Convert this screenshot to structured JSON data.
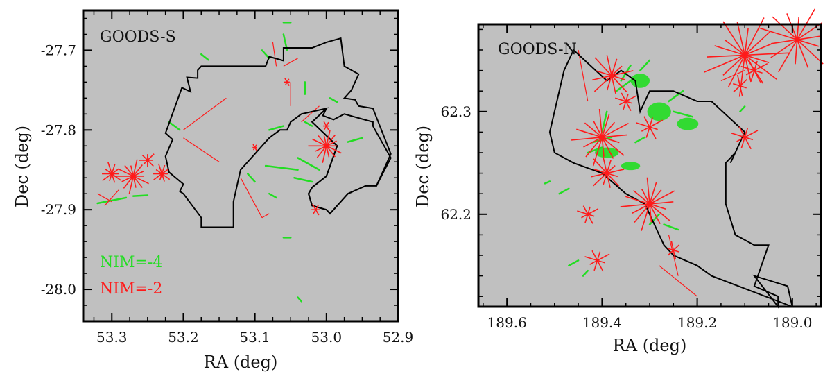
{
  "chart_data": [
    {
      "type": "scatter",
      "title": "GOODS-S",
      "xlabel": "RA (deg)",
      "ylabel": "Dec (deg)",
      "xlim": [
        53.34,
        52.9
      ],
      "ylim": [
        -28.04,
        -27.65
      ],
      "xticks": [
        53.3,
        53.2,
        53.1,
        53.0,
        52.9
      ],
      "xtick_labels": [
        "53.3",
        "53.2",
        "53.1",
        "53.0",
        "52.9"
      ],
      "yticks": [
        -27.7,
        -27.8,
        -27.9,
        -28.0
      ],
      "ytick_labels": [
        "-27.7",
        "-27.8",
        "-27.9",
        "-28.0"
      ],
      "background": "#c0c0c0",
      "legend": [
        {
          "label": "NIM=-4",
          "color": "#22dd22"
        },
        {
          "label": "NIM=-2",
          "color": "#ff1a1a"
        }
      ],
      "footprint_ra": [
        53.202,
        53.19,
        53.195,
        53.18,
        53.18,
        53.175,
        53.11,
        53.1,
        53.085,
        53.08,
        53.06,
        53.06,
        53.04,
        53.02,
        53.0,
        52.98,
        52.975,
        52.955,
        52.965,
        52.975,
        52.975,
        52.96,
        52.955,
        52.935,
        52.91,
        52.93,
        52.945,
        52.97,
        52.995,
        53.0,
        53.02,
        53.025,
        53.02,
        53.0,
        52.985,
        53.02,
        53.0,
        53.035,
        53.05,
        53.055,
        53.065,
        53.08,
        53.1,
        53.12,
        53.125,
        53.13,
        53.13,
        53.175,
        53.175,
        53.2,
        53.205,
        53.2,
        53.22,
        53.225,
        53.215,
        53.225
      ],
      "footprint_dec": [
        -27.747,
        -27.752,
        -27.734,
        -27.735,
        -27.725,
        -27.72,
        -27.72,
        -27.72,
        -27.72,
        -27.708,
        -27.713,
        -27.697,
        -27.697,
        -27.697,
        -27.69,
        -27.685,
        -27.72,
        -27.73,
        -27.75,
        -27.76,
        -27.76,
        -27.762,
        -27.77,
        -27.773,
        -27.83,
        -27.87,
        -27.87,
        -27.88,
        -27.905,
        -27.9,
        -27.895,
        -27.88,
        -27.872,
        -27.858,
        -27.82,
        -27.79,
        -27.773,
        -27.78,
        -27.79,
        -27.8,
        -27.8,
        -27.81,
        -27.83,
        -27.85,
        -27.87,
        -27.89,
        -27.922,
        -27.922,
        -27.91,
        -27.88,
        -27.877,
        -27.868,
        -27.853,
        -27.833,
        -27.812,
        -27.804
      ],
      "footprint_ra_2": [
        53.005,
        52.99,
        52.975,
        52.955,
        52.935,
        52.935,
        52.91,
        52.93,
        52.945,
        52.97,
        52.995,
        53.0,
        53.02,
        53.025,
        53.02,
        53.0,
        52.985,
        53.02,
        53.0,
        53.005
      ],
      "footprint_dec_2": [
        -27.782,
        -27.787,
        -27.78,
        -27.785,
        -27.79,
        -27.795,
        -27.835,
        -27.87,
        -27.87,
        -27.88,
        -27.905,
        -27.9,
        -27.895,
        -27.88,
        -27.872,
        -27.858,
        -27.82,
        -27.79,
        -27.773,
        -27.782
      ],
      "red_stars": [
        {
          "ra": 53.3,
          "dec": -27.855,
          "r": 0.016,
          "n": 10
        },
        {
          "ra": 53.27,
          "dec": -27.858,
          "r": 0.025,
          "n": 14
        },
        {
          "ra": 53.25,
          "dec": -27.838,
          "r": 0.012,
          "n": 8
        },
        {
          "ra": 53.23,
          "dec": -27.855,
          "r": 0.014,
          "n": 10
        },
        {
          "ra": 53.0,
          "dec": -27.82,
          "r": 0.024,
          "n": 14
        },
        {
          "ra": 53.0,
          "dec": -27.795,
          "r": 0.007,
          "n": 6
        },
        {
          "ra": 53.015,
          "dec": -27.9,
          "r": 0.009,
          "n": 6
        },
        {
          "ra": 53.1,
          "dec": -27.822,
          "r": 0.005,
          "n": 6
        },
        {
          "ra": 53.055,
          "dec": -27.74,
          "r": 0.006,
          "n": 6
        }
      ],
      "red_segments": [
        [
          53.32,
          -27.88,
          53.3,
          -27.89
        ],
        [
          53.31,
          -27.895,
          53.29,
          -27.875
        ],
        [
          53.2,
          -27.8,
          53.14,
          -27.76
        ],
        [
          53.2,
          -27.81,
          53.15,
          -27.84
        ],
        [
          53.12,
          -27.86,
          53.09,
          -27.91
        ],
        [
          53.09,
          -27.91,
          53.08,
          -27.905
        ],
        [
          53.06,
          -27.72,
          53.04,
          -27.71
        ],
        [
          53.075,
          -27.69,
          53.07,
          -27.72
        ],
        [
          53.05,
          -27.74,
          53.05,
          -27.77
        ],
        [
          53.035,
          -27.79,
          53.01,
          -27.77
        ]
      ],
      "green_segments": [
        [
          53.175,
          -27.705,
          53.165,
          -27.712
        ],
        [
          53.22,
          -27.79,
          53.205,
          -27.8
        ],
        [
          53.32,
          -27.892,
          53.28,
          -27.885
        ],
        [
          53.27,
          -27.883,
          53.25,
          -27.882
        ],
        [
          53.085,
          -27.845,
          53.04,
          -27.85
        ],
        [
          53.04,
          -27.835,
          53.01,
          -27.85
        ],
        [
          53.045,
          -27.86,
          53.02,
          -27.865
        ],
        [
          53.03,
          -27.79,
          53.02,
          -27.795
        ],
        [
          53.08,
          -27.8,
          53.06,
          -27.795
        ],
        [
          53.06,
          -27.68,
          53.055,
          -27.7
        ],
        [
          53.09,
          -27.7,
          53.08,
          -27.71
        ],
        [
          53.03,
          -27.74,
          53.03,
          -27.755
        ],
        [
          52.995,
          -27.76,
          52.985,
          -27.765
        ],
        [
          52.97,
          -27.815,
          52.95,
          -27.81
        ],
        [
          53.06,
          -27.935,
          53.05,
          -27.935
        ],
        [
          53.04,
          -28.01,
          53.035,
          -28.015
        ],
        [
          53.11,
          -27.855,
          53.1,
          -27.865
        ],
        [
          53.08,
          -27.88,
          53.07,
          -27.885
        ],
        [
          53.06,
          -27.665,
          53.05,
          -27.665
        ]
      ]
    },
    {
      "type": "scatter",
      "title": "GOODS-N",
      "xlabel": "RA (deg)",
      "ylabel": "Dec (deg)",
      "xlim": [
        189.66,
        188.94
      ],
      "ylim": [
        62.11,
        62.385
      ],
      "xticks": [
        189.6,
        189.4,
        189.2,
        189.0
      ],
      "xtick_labels": [
        "189.6",
        "189.4",
        "189.2",
        "189.0"
      ],
      "yticks": [
        62.3,
        62.2
      ],
      "ytick_labels": [
        "62.3",
        "62.2"
      ],
      "background": "#c0c0c0",
      "footprint_ra": [
        189.46,
        189.39,
        189.36,
        189.33,
        189.32,
        189.3,
        189.25,
        189.2,
        189.17,
        189.1,
        189.13,
        189.12,
        189.14,
        189.14,
        189.12,
        189.08,
        189.05,
        189.08,
        189.03,
        189.03,
        189.08,
        189.08,
        189.01,
        189.0,
        189.17,
        189.2,
        189.25,
        189.27,
        189.28,
        189.31,
        189.35,
        189.4,
        189.46,
        189.5,
        189.51,
        189.48
      ],
      "footprint_dec": [
        62.36,
        62.33,
        62.34,
        62.33,
        62.3,
        62.32,
        62.32,
        62.31,
        62.31,
        62.28,
        62.25,
        62.26,
        62.25,
        62.21,
        62.18,
        62.17,
        62.17,
        62.13,
        62.12,
        62.11,
        62.14,
        62.14,
        62.13,
        62.11,
        62.14,
        62.15,
        62.16,
        62.17,
        62.18,
        62.21,
        62.22,
        62.24,
        62.25,
        62.26,
        62.28,
        62.34
      ],
      "red_stars": [
        {
          "ra": 189.4,
          "dec": 62.275,
          "r": 0.032,
          "n": 16
        },
        {
          "ra": 189.39,
          "dec": 62.24,
          "r": 0.02,
          "n": 12
        },
        {
          "ra": 189.38,
          "dec": 62.335,
          "r": 0.025,
          "n": 12
        },
        {
          "ra": 189.3,
          "dec": 62.21,
          "r": 0.03,
          "n": 16
        },
        {
          "ra": 189.43,
          "dec": 62.2,
          "r": 0.012,
          "n": 8
        },
        {
          "ra": 189.41,
          "dec": 62.155,
          "r": 0.014,
          "n": 8
        },
        {
          "ra": 189.25,
          "dec": 62.165,
          "r": 0.01,
          "n": 6
        },
        {
          "ra": 189.1,
          "dec": 62.355,
          "r": 0.045,
          "n": 18
        },
        {
          "ra": 188.99,
          "dec": 62.37,
          "r": 0.04,
          "n": 14
        },
        {
          "ra": 189.08,
          "dec": 62.34,
          "r": 0.015,
          "n": 8
        },
        {
          "ra": 189.11,
          "dec": 62.325,
          "r": 0.012,
          "n": 6
        },
        {
          "ra": 189.1,
          "dec": 62.275,
          "r": 0.015,
          "n": 8
        },
        {
          "ra": 189.3,
          "dec": 62.285,
          "r": 0.015,
          "n": 8
        },
        {
          "ra": 189.35,
          "dec": 62.31,
          "r": 0.012,
          "n": 8
        }
      ],
      "red_segments": [
        [
          189.45,
          62.36,
          189.43,
          62.31
        ],
        [
          189.26,
          62.18,
          189.24,
          62.14
        ],
        [
          189.28,
          62.15,
          189.2,
          62.12
        ],
        [
          189.15,
          62.33,
          189.1,
          62.34
        ]
      ],
      "green_blobs": [
        {
          "ra": 189.28,
          "dec": 62.3,
          "w": 0.05,
          "h": 0.018
        },
        {
          "ra": 189.32,
          "dec": 62.33,
          "w": 0.04,
          "h": 0.014
        },
        {
          "ra": 189.22,
          "dec": 62.288,
          "w": 0.045,
          "h": 0.012
        },
        {
          "ra": 189.39,
          "dec": 62.26,
          "w": 0.05,
          "h": 0.01
        },
        {
          "ra": 189.34,
          "dec": 62.247,
          "w": 0.04,
          "h": 0.008
        }
      ],
      "green_segments": [
        [
          189.36,
          62.33,
          189.34,
          62.345
        ],
        [
          189.37,
          62.32,
          189.34,
          62.33
        ],
        [
          189.32,
          62.34,
          189.3,
          62.35
        ],
        [
          189.26,
          62.31,
          189.23,
          62.32
        ],
        [
          189.25,
          62.3,
          189.21,
          62.295
        ],
        [
          189.42,
          62.27,
          189.38,
          62.275
        ],
        [
          189.43,
          62.26,
          189.4,
          62.265
        ],
        [
          189.3,
          62.19,
          189.28,
          62.2
        ],
        [
          189.27,
          62.19,
          189.24,
          62.185
        ],
        [
          189.49,
          62.22,
          189.47,
          62.225
        ],
        [
          189.47,
          62.15,
          189.45,
          62.155
        ],
        [
          189.44,
          62.14,
          189.43,
          62.145
        ],
        [
          189.52,
          62.23,
          189.51,
          62.232
        ],
        [
          189.11,
          62.3,
          189.1,
          62.305
        ],
        [
          189.33,
          62.27,
          189.31,
          62.275
        ],
        [
          189.4,
          62.28,
          189.39,
          62.3
        ]
      ]
    }
  ]
}
